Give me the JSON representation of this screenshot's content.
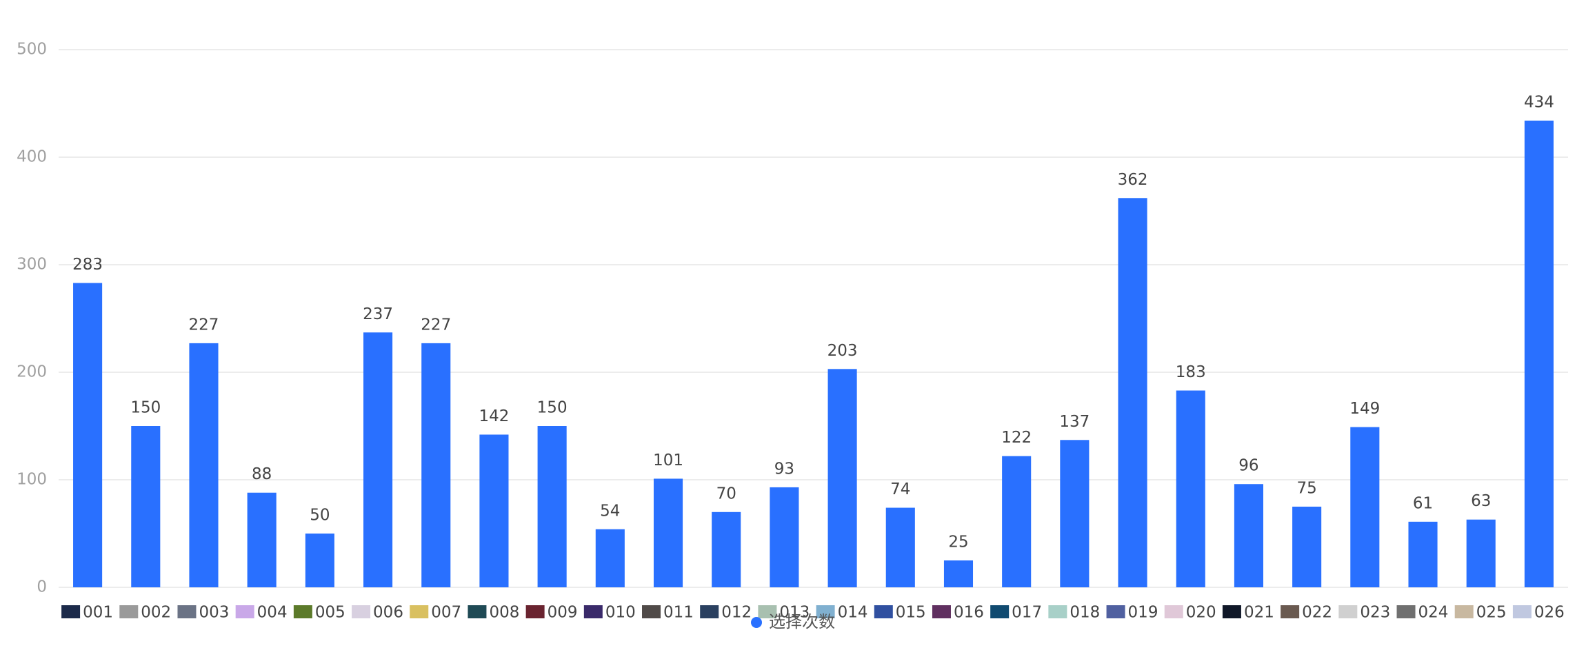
{
  "chart_data": {
    "type": "bar",
    "categories": [
      "001",
      "002",
      "003",
      "004",
      "005",
      "006",
      "007",
      "008",
      "009",
      "010",
      "011",
      "012",
      "013",
      "014",
      "015",
      "016",
      "017",
      "018",
      "019",
      "020",
      "021",
      "022",
      "023",
      "024",
      "025",
      "026"
    ],
    "series": [
      {
        "name": "选择次数",
        "color": "#2970ff",
        "values": [
          283,
          150,
          227,
          88,
          50,
          237,
          227,
          142,
          150,
          54,
          101,
          70,
          93,
          203,
          74,
          25,
          122,
          137,
          362,
          183,
          96,
          75,
          149,
          61,
          63,
          434
        ]
      }
    ],
    "ylim": [
      0,
      500
    ],
    "yticks": [
      0,
      100,
      200,
      300,
      400,
      500
    ],
    "grid": true
  }
}
